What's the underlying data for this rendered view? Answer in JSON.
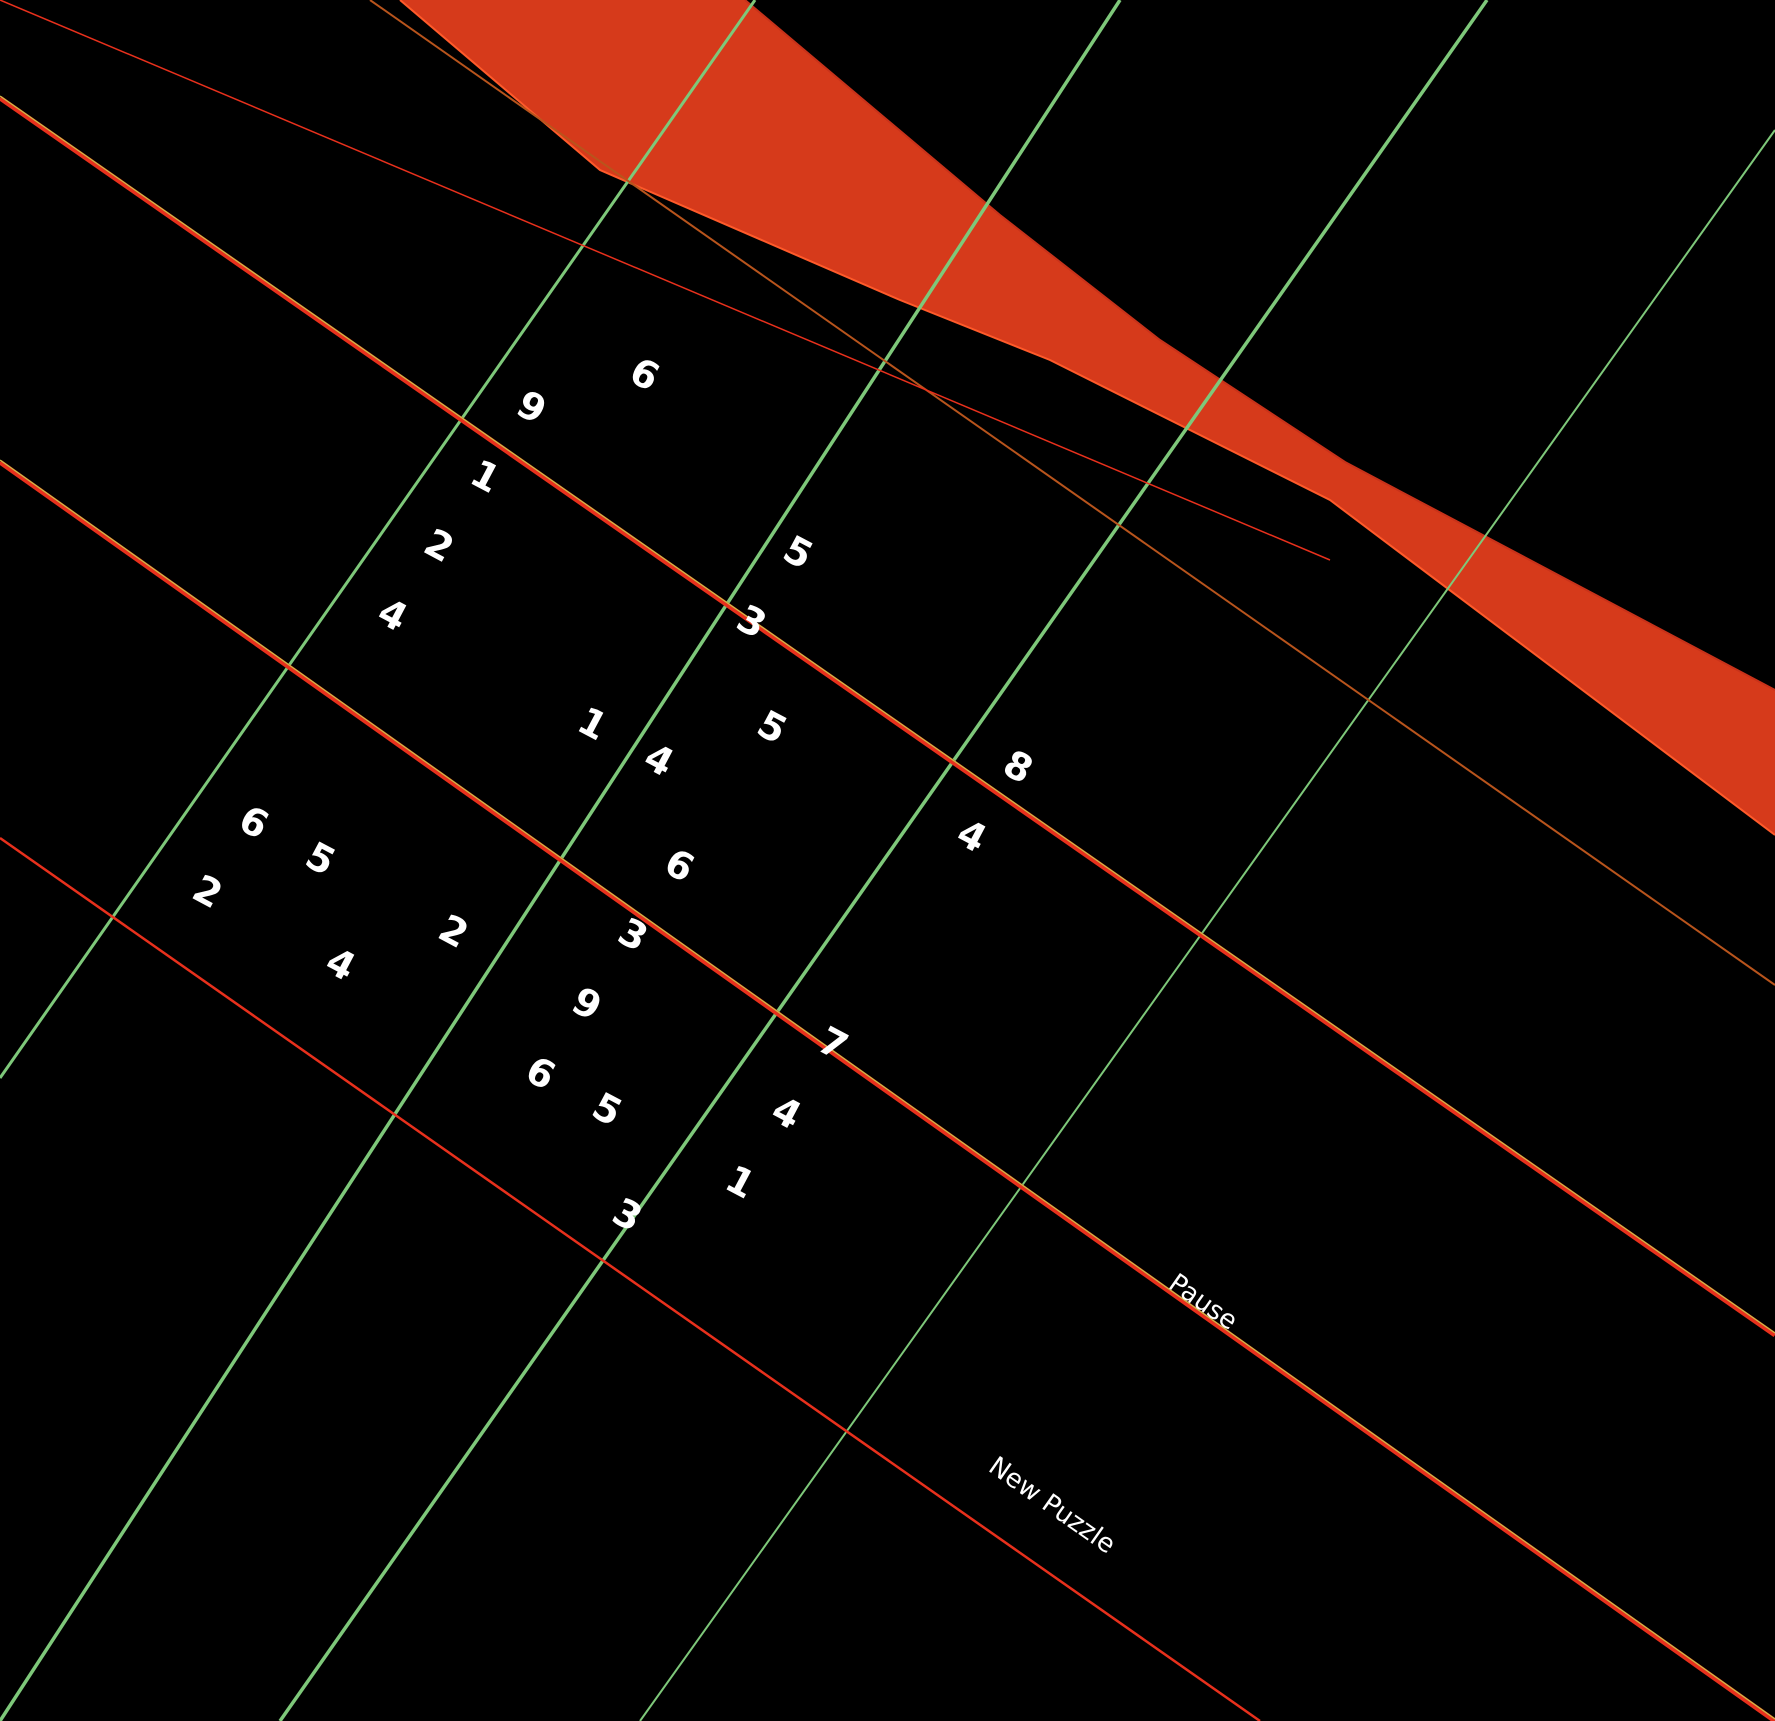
{
  "puzzle": {
    "size": 9,
    "givens": [
      {
        "row": 0,
        "col": 1,
        "value": "6"
      },
      {
        "row": 1,
        "col": 0,
        "value": "9"
      },
      {
        "row": 1,
        "col": 4,
        "value": "5"
      },
      {
        "row": 2,
        "col": 0,
        "value": "1"
      },
      {
        "row": 2,
        "col": 4,
        "value": "3"
      },
      {
        "row": 2,
        "col": 8,
        "value": "8"
      },
      {
        "row": 3,
        "col": 0,
        "value": "2"
      },
      {
        "row": 4,
        "col": 0,
        "value": "4"
      },
      {
        "row": 4,
        "col": 4,
        "value": "4"
      },
      {
        "row": 3,
        "col": 8,
        "value": "4"
      },
      {
        "row": 4,
        "col": 3,
        "value": "1"
      },
      {
        "row": 3,
        "col": 5,
        "value": "5"
      },
      {
        "row": 5,
        "col": 5,
        "value": "6"
      },
      {
        "row": 6,
        "col": 5,
        "value": "3"
      },
      {
        "row": 7,
        "col": 1,
        "value": "5"
      },
      {
        "row": 6,
        "col": 8,
        "value": "7"
      },
      {
        "row": 8,
        "col": 0,
        "value": "2"
      },
      {
        "row": 7,
        "col": 0,
        "value": "6"
      },
      {
        "row": 7,
        "col": 3,
        "value": "2"
      },
      {
        "row": 7,
        "col": 5,
        "value": "9"
      },
      {
        "row": 8,
        "col": 2,
        "value": "4"
      },
      {
        "row": 7,
        "col": 8,
        "value": "4"
      },
      {
        "row": 8,
        "col": 5,
        "value": "6"
      },
      {
        "row": 8,
        "col": 6,
        "value": "5"
      },
      {
        "row": 8,
        "col": 8,
        "value": "1"
      },
      {
        "row": 9,
        "col": 7,
        "value": "3"
      }
    ]
  },
  "buttons": {
    "pause_label": "Pause",
    "new_puzzle_label": "New Puzzle"
  },
  "colors": {
    "background": "#000000",
    "grid_line": "#7ec87a",
    "band_line": "#e8301c",
    "band_fill": "#e8401e",
    "digit": "#ffffff"
  }
}
